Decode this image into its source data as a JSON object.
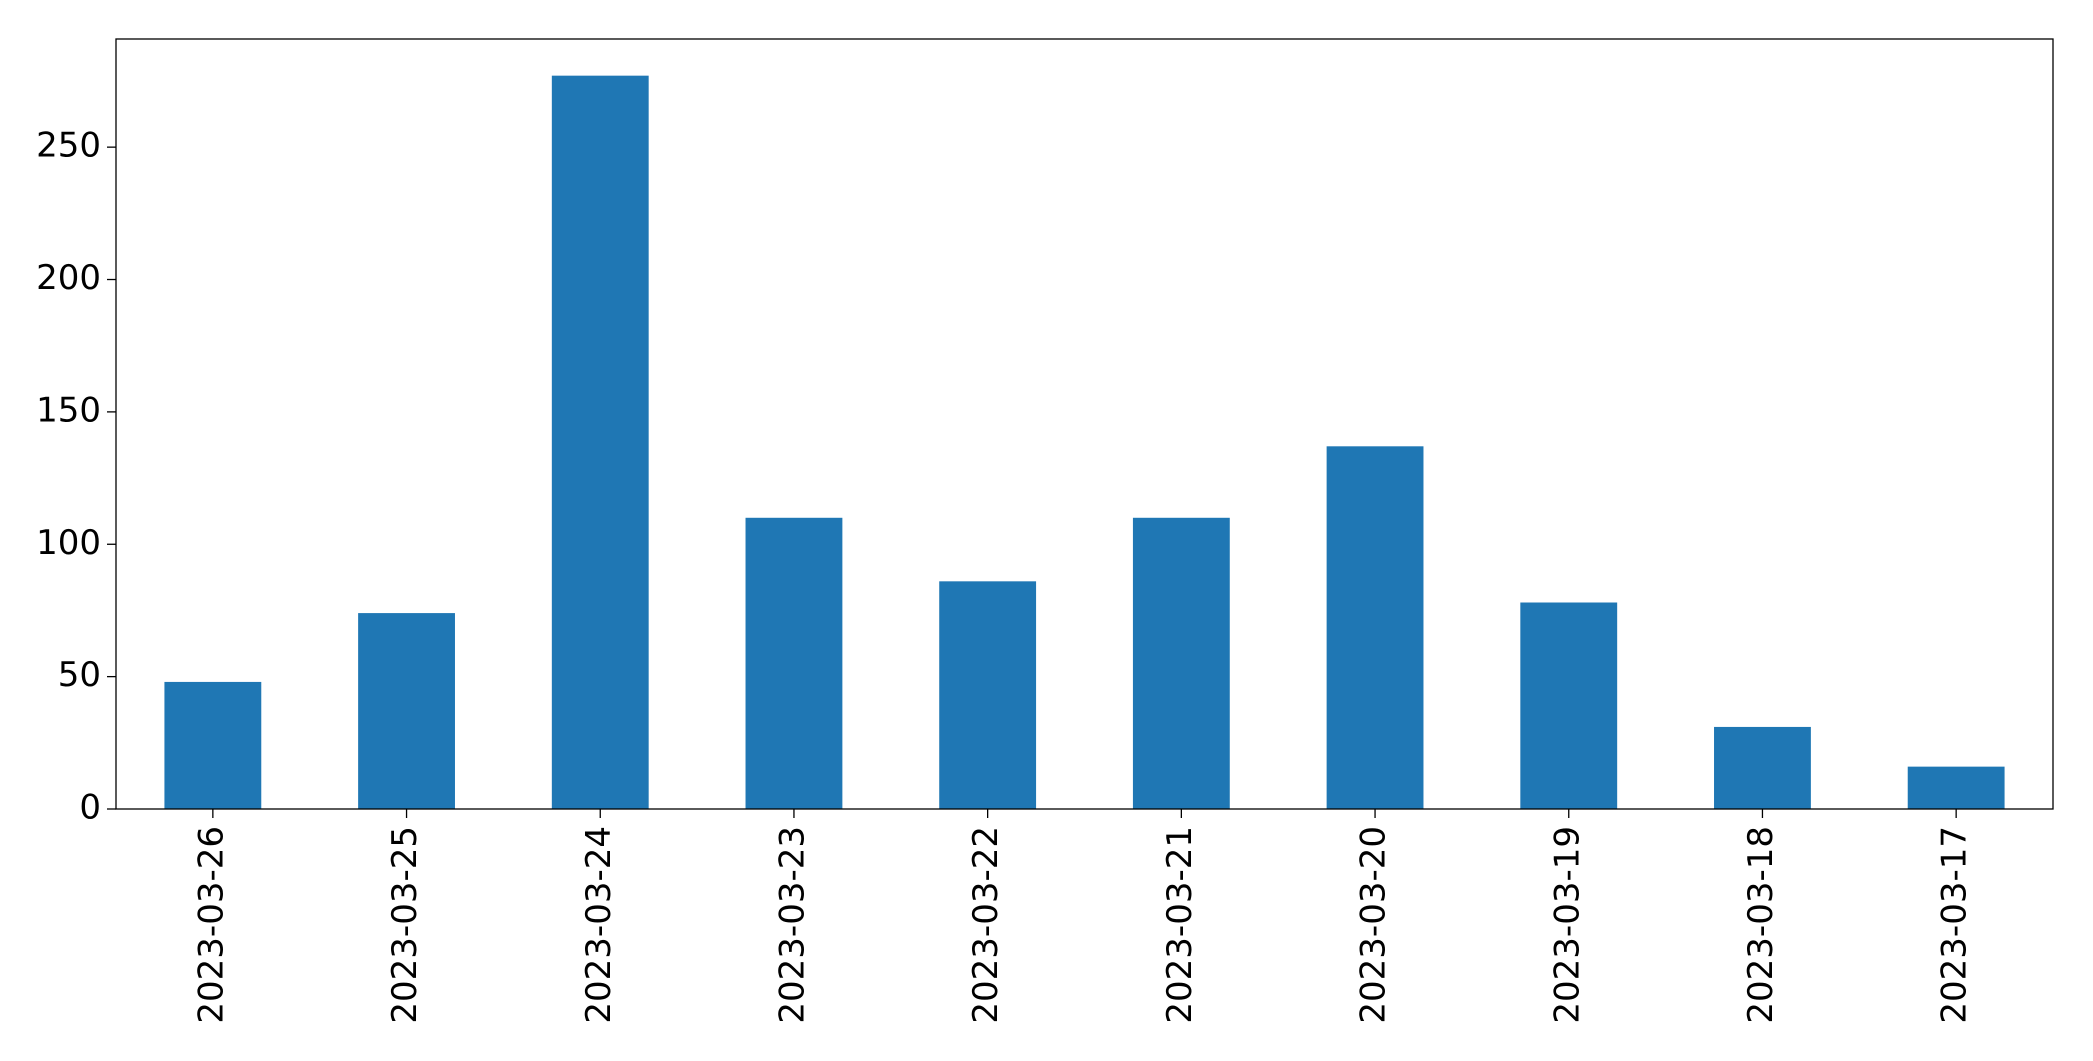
{
  "chart_data": {
    "type": "bar",
    "categories": [
      "2023-03-26",
      "2023-03-25",
      "2023-03-24",
      "2023-03-23",
      "2023-03-22",
      "2023-03-21",
      "2023-03-20",
      "2023-03-19",
      "2023-03-18",
      "2023-03-17"
    ],
    "values": [
      48,
      74,
      277,
      110,
      86,
      110,
      137,
      78,
      31,
      16
    ],
    "color": "#1f77b4",
    "ylim": [
      0,
      290.85
    ],
    "yticks": [
      0,
      50,
      100,
      150,
      200,
      250
    ],
    "grid": false
  }
}
